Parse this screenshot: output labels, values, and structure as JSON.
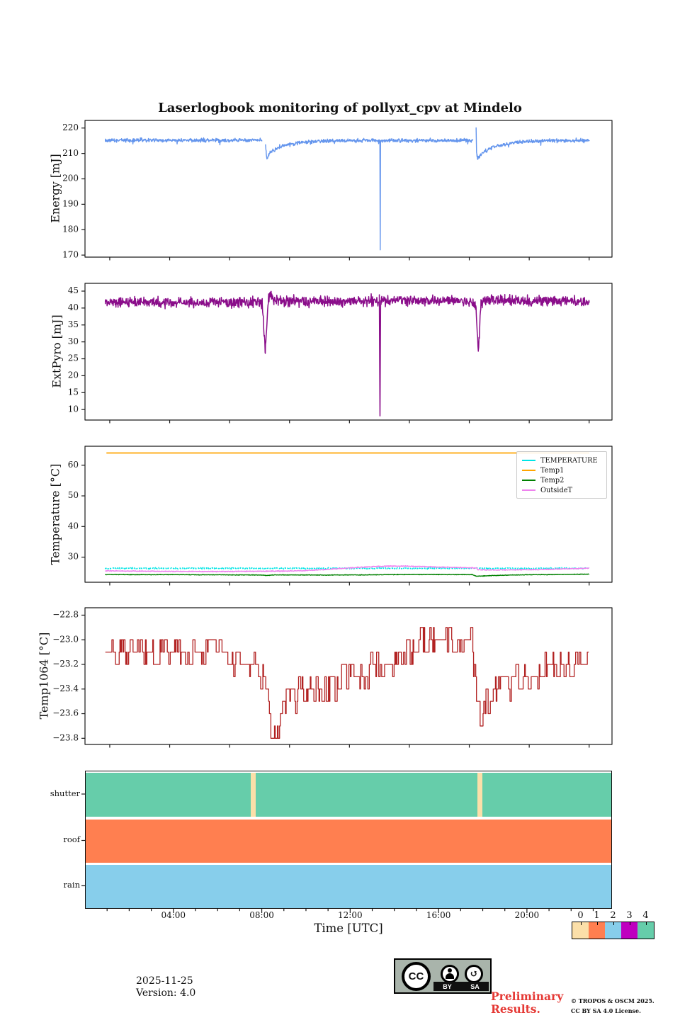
{
  "title": "Laserlogbook monitoring of pollyxt_cpv at Mindelo",
  "time_axis": {
    "label": "Time [UTC]",
    "xlim": [
      0,
      23.85
    ],
    "major_ticks": [
      {
        "t": 4,
        "label": "04:00"
      },
      {
        "t": 8,
        "label": "08:00"
      },
      {
        "t": 12,
        "label": "12:00"
      },
      {
        "t": 16,
        "label": "16:00"
      },
      {
        "t": 20,
        "label": "20:00"
      }
    ],
    "minor_tick_hours": [
      1,
      2,
      3,
      5,
      6,
      7,
      9,
      10,
      11,
      13,
      14,
      15,
      17,
      18,
      19,
      21,
      22,
      23
    ],
    "unlabeled_ticks": {
      "start": 1.12,
      "step": 2.712,
      "count": 9
    }
  },
  "chart_data": [
    {
      "id": "energy",
      "type": "line",
      "ylabel": "Energy [mJ]",
      "ylim": [
        169.2,
        223
      ],
      "yticks": [
        170,
        180,
        190,
        200,
        210,
        220
      ],
      "ytick_decimals": 0,
      "series": [
        {
          "name": "Energy",
          "color": "#6495ED",
          "line_width": 1.4,
          "noise": 0.45,
          "blip_chance": 0.02,
          "segments": [
            [
              [
                0.92,
                215.2
              ],
              [
                8.02,
                215.2
              ]
            ],
            [
              [
                8.17,
                213.8
              ],
              [
                8.2,
                210.5
              ],
              [
                8.24,
                207.9
              ],
              [
                8.32,
                209.8
              ],
              [
                8.5,
                211.2
              ],
              [
                8.8,
                212.6
              ],
              [
                9.2,
                213.6
              ],
              [
                9.8,
                214.4
              ],
              [
                10.6,
                214.9
              ],
              [
                11.5,
                215.1
              ],
              [
                13.32,
                215.1
              ],
              [
                13.345,
                214.8
              ],
              [
                13.36,
                172.3
              ],
              [
                13.375,
                214.8
              ],
              [
                13.5,
                215.1
              ],
              [
                17.56,
                215.1
              ]
            ],
            [
              [
                17.7,
                220.8
              ],
              [
                17.71,
                215.0
              ],
              [
                17.72,
                211.0
              ],
              [
                17.74,
                208.8
              ],
              [
                17.78,
                207.9
              ],
              [
                17.9,
                209.4
              ],
              [
                18.1,
                210.9
              ],
              [
                18.4,
                212.2
              ],
              [
                18.8,
                213.2
              ],
              [
                19.4,
                214.2
              ],
              [
                20.2,
                214.8
              ],
              [
                21.0,
                215.1
              ],
              [
                22.82,
                215.1
              ]
            ]
          ]
        }
      ]
    },
    {
      "id": "extpyro",
      "type": "line",
      "ylabel": "ExtPyro [mJ]",
      "ylim": [
        6.9,
        47.3
      ],
      "yticks": [
        10,
        15,
        20,
        25,
        30,
        35,
        40,
        45
      ],
      "ytick_decimals": 0,
      "series": [
        {
          "name": "ExtPyro",
          "color": "#8A0D8A",
          "line_width": 1.5,
          "noise": 0.95,
          "blip_chance": 0,
          "segments": [
            [
              [
                0.92,
                41.7
              ],
              [
                7.9,
                41.7
              ],
              [
                8.02,
                41.2
              ],
              [
                8.16,
                27.2
              ],
              [
                8.3,
                43.0
              ],
              [
                8.38,
                44.2
              ],
              [
                8.55,
                42.3
              ],
              [
                9.5,
                42.0
              ],
              [
                12.0,
                42.1
              ],
              [
                13.32,
                42.2
              ],
              [
                13.35,
                8.6
              ],
              [
                13.38,
                42.2
              ],
              [
                14.0,
                42.3
              ],
              [
                16.5,
                42.2
              ],
              [
                17.62,
                41.8
              ],
              [
                17.7,
                40.0
              ],
              [
                17.8,
                26.4
              ],
              [
                17.92,
                41.5
              ],
              [
                18.1,
                42.4
              ],
              [
                19.0,
                42.2
              ],
              [
                20.0,
                42.0
              ],
              [
                21.0,
                42.2
              ],
              [
                22.82,
                41.8
              ]
            ]
          ]
        }
      ]
    },
    {
      "id": "temperature",
      "type": "line",
      "ylabel": "Temperature [°C]",
      "ylim": [
        21.8,
        66.2
      ],
      "yticks": [
        30,
        40,
        50,
        60
      ],
      "ytick_decimals": 0,
      "legend": {
        "position": "upper right",
        "entries": [
          {
            "label": "TEMPERATURE",
            "color": "#00E5E5"
          },
          {
            "label": "Temp1",
            "color": "#FFA500"
          },
          {
            "label": "Temp2",
            "color": "#008000"
          },
          {
            "label": "OutsideT",
            "color": "#EE82EE"
          }
        ]
      },
      "series": [
        {
          "name": "TEMPERATURE",
          "color": "#00E5E5",
          "line_width": 1.6,
          "noise": 0.12,
          "blip_chance": 0,
          "dash": [
            2.5,
            2.2
          ],
          "segments": [
            [
              [
                0.92,
                26.35
              ],
              [
                22.82,
                26.35
              ]
            ]
          ]
        },
        {
          "name": "Temp1",
          "color": "#FFA500",
          "line_width": 1.7,
          "noise": 0,
          "blip_chance": 0,
          "segments": [
            [
              [
                0.97,
                64
              ],
              [
                22.82,
                64
              ]
            ]
          ]
        },
        {
          "name": "Temp2",
          "color": "#008000",
          "line_width": 1.4,
          "noise": 0.06,
          "blip_chance": 0,
          "segments": [
            [
              [
                0.92,
                24.3
              ],
              [
                4.0,
                24.28
              ],
              [
                7.2,
                24.2
              ],
              [
                8.0,
                24.15
              ],
              [
                8.2,
                24.0
              ],
              [
                8.5,
                24.18
              ],
              [
                9.0,
                24.2
              ],
              [
                11.0,
                24.15
              ],
              [
                12.5,
                24.2
              ],
              [
                14.0,
                24.3
              ],
              [
                15.5,
                24.35
              ],
              [
                16.8,
                24.3
              ],
              [
                17.55,
                24.28
              ],
              [
                17.7,
                23.78
              ],
              [
                17.9,
                23.82
              ],
              [
                18.4,
                23.95
              ],
              [
                19.0,
                24.1
              ],
              [
                20.0,
                24.25
              ],
              [
                21.0,
                24.3
              ],
              [
                22.82,
                24.45
              ]
            ]
          ]
        },
        {
          "name": "OutsideT",
          "color": "#EE82EE",
          "line_width": 1.4,
          "noise": 0.09,
          "blip_chance": 0,
          "segments": [
            [
              [
                0.92,
                25.55
              ],
              [
                2.0,
                25.45
              ],
              [
                4.0,
                25.35
              ],
              [
                6.0,
                25.3
              ],
              [
                7.5,
                25.35
              ],
              [
                9.0,
                25.45
              ],
              [
                10.0,
                25.6
              ],
              [
                11.0,
                26.0
              ],
              [
                12.0,
                26.5
              ],
              [
                13.0,
                26.9
              ],
              [
                13.8,
                27.1
              ],
              [
                14.6,
                27.05
              ],
              [
                15.4,
                26.9
              ],
              [
                16.2,
                26.75
              ],
              [
                17.0,
                26.6
              ],
              [
                17.5,
                26.5
              ],
              [
                17.72,
                26.45
              ],
              [
                17.78,
                25.85
              ],
              [
                18.5,
                25.8
              ],
              [
                19.5,
                25.85
              ],
              [
                20.5,
                25.95
              ],
              [
                21.5,
                26.1
              ],
              [
                22.4,
                26.3
              ],
              [
                22.82,
                26.4
              ]
            ]
          ]
        }
      ]
    },
    {
      "id": "temp1064",
      "type": "step-line",
      "ylabel": "Temp1064 [°C]",
      "ylim": [
        -23.85,
        -22.74
      ],
      "yticks": [
        -23.8,
        -23.6,
        -23.4,
        -23.2,
        -23.0,
        -22.8
      ],
      "ytick_decimals": 1,
      "series": [
        {
          "name": "Temp1064",
          "color": "#B22222",
          "line_width": 1.3,
          "step_size": 0.1,
          "range": [
            0.92,
            22.82
          ],
          "clamp": [
            -23.8,
            -22.85
          ],
          "envelope": [
            [
              0.92,
              -23.07
            ],
            [
              2.0,
              -23.1
            ],
            [
              3.5,
              -23.1
            ],
            [
              5.0,
              -23.12
            ],
            [
              6.5,
              -23.15
            ],
            [
              7.3,
              -23.18
            ],
            [
              7.9,
              -23.24
            ],
            [
              8.15,
              -23.35
            ],
            [
              8.35,
              -23.62
            ],
            [
              8.55,
              -23.76
            ],
            [
              8.7,
              -23.68
            ],
            [
              8.9,
              -23.55
            ],
            [
              9.2,
              -23.5
            ],
            [
              9.6,
              -23.45
            ],
            [
              10.3,
              -23.43
            ],
            [
              11.0,
              -23.4
            ],
            [
              11.8,
              -23.33
            ],
            [
              12.6,
              -23.27
            ],
            [
              13.4,
              -23.2
            ],
            [
              14.2,
              -23.13
            ],
            [
              15.0,
              -23.05
            ],
            [
              15.6,
              -23.0
            ],
            [
              16.2,
              -22.97
            ],
            [
              16.8,
              -22.95
            ],
            [
              17.3,
              -22.96
            ],
            [
              17.55,
              -23.1
            ],
            [
              17.7,
              -23.35
            ],
            [
              17.85,
              -23.55
            ],
            [
              17.95,
              -23.63
            ],
            [
              18.15,
              -23.52
            ],
            [
              18.5,
              -23.43
            ],
            [
              19.0,
              -23.37
            ],
            [
              19.6,
              -23.32
            ],
            [
              20.2,
              -23.27
            ],
            [
              21.0,
              -23.23
            ],
            [
              21.8,
              -23.2
            ],
            [
              22.82,
              -23.2
            ]
          ]
        }
      ]
    },
    {
      "id": "status",
      "type": "timeline",
      "rows": [
        {
          "label": "shutter",
          "value": 4,
          "color": "#66CDAA",
          "span": [
            0,
            23.85
          ],
          "bands": [
            {
              "t0": 7.5,
              "t1": 7.73,
              "value": 0,
              "color": "#FBDFA9"
            },
            {
              "t0": 17.78,
              "t1": 18.01,
              "value": 0,
              "color": "#FBDFA9"
            }
          ]
        },
        {
          "label": "roof",
          "value": 1,
          "color": "#FF7F50",
          "span": [
            0,
            23.85
          ],
          "bands": []
        },
        {
          "label": "rain",
          "value": 2,
          "color": "#87CEEB",
          "span": [
            0,
            23.85
          ],
          "bands": []
        }
      ],
      "colorbar": {
        "values": [
          "0",
          "1",
          "2",
          "3",
          "4"
        ],
        "colors": [
          "#FBDFA9",
          "#FF7F50",
          "#87CEEB",
          "#BF00BF",
          "#66CDAA"
        ]
      }
    }
  ],
  "footer": {
    "date": "2025-11-25",
    "version": "Version: 4.0",
    "preliminary_line1": "Preliminary",
    "preliminary_line2": "Results.",
    "preliminary_color": "#E53935",
    "copyright_line1": "© TROPOS & OSCM 2025.",
    "copyright_line2": "CC BY SA 4.0 License.",
    "badge": {
      "cc": "CC",
      "by": "BY",
      "sa": "SA"
    }
  }
}
